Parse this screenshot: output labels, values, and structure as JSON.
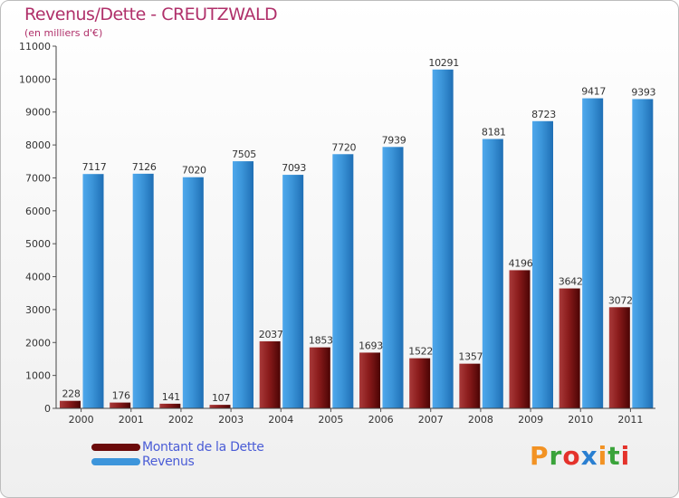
{
  "header": {
    "title": "Revenus/Dette - CREUTZWALD",
    "subtitle": "(en milliers d'€)"
  },
  "legend": {
    "items": [
      {
        "label": "Montant de la Dette",
        "color": "#6b0a0a"
      },
      {
        "label": "Revenus",
        "color": "#3d95db"
      }
    ]
  },
  "logo": {
    "text": "Proxiti",
    "colors": [
      "#f29223",
      "#3aa33a",
      "#e4322b",
      "#2a7fd1",
      "#f29223",
      "#3aa33a",
      "#e4322b"
    ]
  },
  "chart_data": {
    "type": "bar",
    "title": "Revenus/Dette - CREUTZWALD",
    "subtitle": "(en milliers d'€)",
    "categories": [
      "2000",
      "2001",
      "2002",
      "2003",
      "2004",
      "2005",
      "2006",
      "2007",
      "2008",
      "2009",
      "2010",
      "2011"
    ],
    "series": [
      {
        "name": "Montant de la Dette",
        "color": "#6b0a0a",
        "values": [
          228,
          176,
          141,
          107,
          2037,
          1853,
          1693,
          1522,
          1357,
          4196,
          3642,
          3072
        ]
      },
      {
        "name": "Revenus",
        "color": "#3d95db",
        "values": [
          7117,
          7126,
          7020,
          7505,
          7093,
          7720,
          7939,
          10291,
          8181,
          8723,
          9417,
          9393
        ]
      }
    ],
    "yticks": [
      0,
      1000,
      2000,
      3000,
      4000,
      5000,
      6000,
      7000,
      8000,
      9000,
      10000,
      11000
    ],
    "ylim": [
      0,
      11000
    ],
    "grid": false,
    "legend": "bottom-left"
  }
}
